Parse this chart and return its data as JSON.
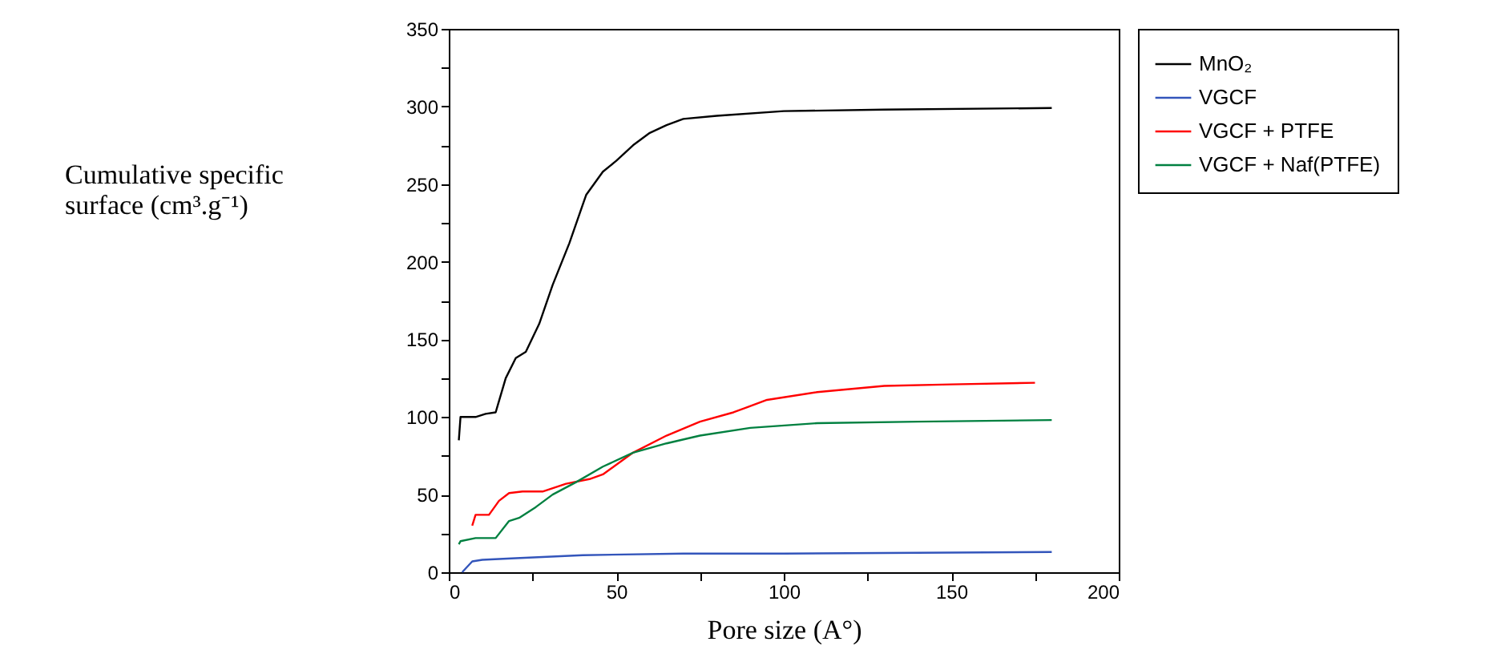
{
  "chart_data": {
    "type": "line",
    "xlabel": "Pore size (A°)",
    "ylabel": "Cumulative specific surface (cm³.g⁻¹)",
    "xlim": [
      0,
      200
    ],
    "xticks": [
      0,
      {
        "value": 25,
        "label": null
      },
      50,
      {
        "value": 75,
        "label": null
      },
      100,
      {
        "value": 125,
        "label": null
      },
      150,
      {
        "value": 175,
        "label": null
      },
      200
    ],
    "ylim": [
      0,
      350
    ],
    "yticks": [
      0,
      {
        "value": 25,
        "label": null
      },
      50,
      {
        "value": 75,
        "label": null
      },
      100,
      {
        "value": 125,
        "label": null
      },
      150,
      {
        "value": 175,
        "label": null
      },
      200,
      {
        "value": 225,
        "label": null
      },
      250,
      {
        "value": 275,
        "label": null
      },
      300,
      {
        "value": 325,
        "label": null
      },
      350
    ],
    "legend": "right",
    "grid": false,
    "marker": "none",
    "line_style": "solid",
    "series": [
      {
        "name": "MnO₂",
        "color": "#000000",
        "x": [
          3,
          3.5,
          8,
          11,
          14,
          17,
          20,
          23,
          27,
          31,
          36,
          41,
          46,
          50,
          55,
          60,
          65,
          70,
          80,
          100,
          130,
          180
        ],
        "values": [
          85,
          100,
          100,
          102,
          103,
          125,
          138,
          142,
          160,
          185,
          212,
          243,
          258,
          265,
          275,
          283,
          288,
          292,
          294,
          297,
          298,
          299
        ]
      },
      {
        "name": "VGCF",
        "color": "#3355bb",
        "x": [
          4,
          7,
          10,
          20,
          40,
          70,
          100,
          180
        ],
        "values": [
          0,
          7,
          8,
          9,
          11,
          12,
          12,
          13
        ]
      },
      {
        "name": "VGCF + PTFE",
        "color": "#ff0000",
        "x": [
          7,
          8,
          10,
          12,
          15,
          18,
          22,
          28,
          35,
          42,
          46,
          55,
          65,
          75,
          85,
          95,
          110,
          130,
          150,
          175
        ],
        "values": [
          30,
          37,
          37,
          37,
          46,
          51,
          52,
          52,
          57,
          60,
          63,
          77,
          88,
          97,
          103,
          111,
          116,
          120,
          121,
          122
        ]
      },
      {
        "name": "VGCF + Naf(PTFE)",
        "color": "#008040",
        "x": [
          3,
          3.5,
          8,
          14,
          18,
          21,
          26,
          31,
          38,
          46,
          55,
          65,
          75,
          90,
          110,
          140,
          180
        ],
        "values": [
          18,
          20,
          22,
          22,
          33,
          35,
          42,
          50,
          58,
          68,
          77,
          83,
          88,
          93,
          96,
          97,
          98
        ]
      }
    ]
  }
}
